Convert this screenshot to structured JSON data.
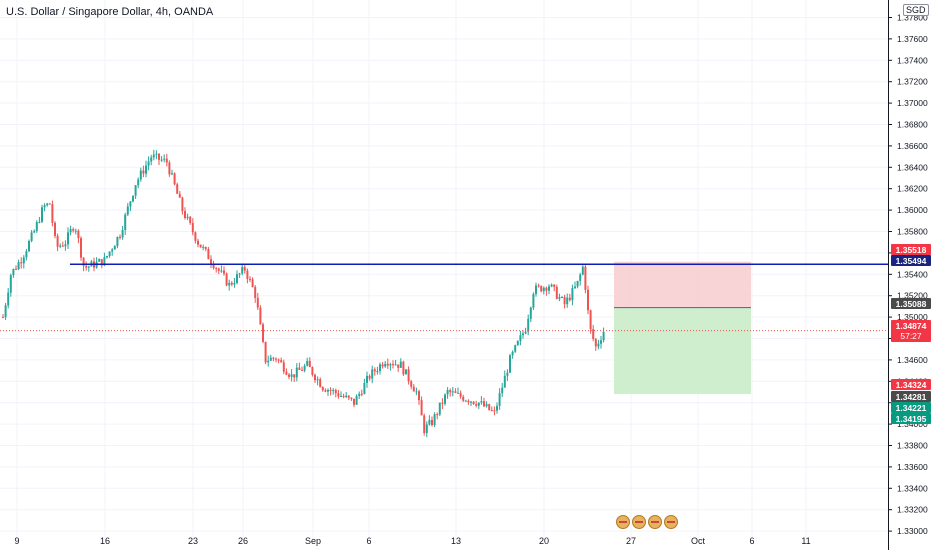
{
  "header": {
    "symbol_title": "U.S. Dollar / Singapore Dollar, 4h, OANDA",
    "currency": "SGD"
  },
  "colors": {
    "up": "#26a69a",
    "down": "#ef5350",
    "hline": "#0d1bb8",
    "stop_zone": "#f8c9cc",
    "target_zone": "#c9ecc9",
    "grid": "#f0f3fa",
    "axis_text": "#131722",
    "current_dash": "#ef5350"
  },
  "price_tags": [
    {
      "text": "1.35518",
      "bg": "#f23645",
      "fg": "#ffffff"
    },
    {
      "text": "1.35494",
      "bg": "#1a237e",
      "fg": "#ffffff"
    },
    {
      "text": "1.35088",
      "bg": "#4a4a4a",
      "fg": "#ffffff"
    },
    {
      "text": "1.34874",
      "sub": "57:27",
      "bg": "#f23645",
      "fg": "#ffffff"
    },
    {
      "text": "1.34324",
      "bg": "#f23645",
      "fg": "#ffffff"
    },
    {
      "text": "1.34281",
      "bg": "#4a4a4a",
      "fg": "#ffffff"
    },
    {
      "text": "1.34221",
      "bg": "#089981",
      "fg": "#ffffff"
    },
    {
      "text": "1.34195",
      "bg": "#089981",
      "fg": "#ffffff"
    }
  ],
  "chart_data": {
    "type": "candlestick",
    "title": "U.S. Dollar / Singapore Dollar, 4h, OANDA",
    "interval": "4h",
    "y_axis_ticks": [
      "1.37800",
      "1.37600",
      "1.37400",
      "1.37200",
      "1.37000",
      "1.36800",
      "1.36600",
      "1.36400",
      "1.36200",
      "1.36000",
      "1.35800",
      "1.35600",
      "1.35400",
      "1.35200",
      "1.35000",
      "1.34800",
      "1.34600",
      "1.34400",
      "1.34200",
      "1.34000",
      "1.33800",
      "1.33600",
      "1.33400",
      "1.33200",
      "1.33000"
    ],
    "ylim": [
      1.33,
      1.379
    ],
    "x_axis_ticks": [
      "9",
      "16",
      "23",
      "26",
      "Sep",
      "6",
      "13",
      "20",
      "27",
      "Oct",
      "6",
      "11"
    ],
    "horizontal_line": 1.35494,
    "current_price": 1.34874,
    "position": {
      "entry": 1.35088,
      "stop": 1.35518,
      "target": 1.34281
    },
    "anchors": [
      {
        "d": 0.0,
        "p": 1.35
      },
      {
        "d": 0.5,
        "p": 1.354
      },
      {
        "d": 1.2,
        "p": 1.3555
      },
      {
        "d": 2.0,
        "p": 1.358
      },
      {
        "d": 2.6,
        "p": 1.3603
      },
      {
        "d": 3.0,
        "p": 1.3606
      },
      {
        "d": 3.4,
        "p": 1.3565
      },
      {
        "d": 4.0,
        "p": 1.357
      },
      {
        "d": 4.6,
        "p": 1.3588
      },
      {
        "d": 5.2,
        "p": 1.3546
      },
      {
        "d": 6.5,
        "p": 1.3553
      },
      {
        "d": 7.5,
        "p": 1.3578
      },
      {
        "d": 8.5,
        "p": 1.3625
      },
      {
        "d": 9.5,
        "p": 1.365
      },
      {
        "d": 10.5,
        "p": 1.3645
      },
      {
        "d": 11.5,
        "p": 1.36
      },
      {
        "d": 12.5,
        "p": 1.357
      },
      {
        "d": 13.5,
        "p": 1.355
      },
      {
        "d": 14.5,
        "p": 1.353
      },
      {
        "d": 15.5,
        "p": 1.3545
      },
      {
        "d": 16.2,
        "p": 1.352
      },
      {
        "d": 16.8,
        "p": 1.346
      },
      {
        "d": 17.5,
        "p": 1.3462
      },
      {
        "d": 18.5,
        "p": 1.3445
      },
      {
        "d": 19.5,
        "p": 1.3455
      },
      {
        "d": 20.5,
        "p": 1.3435
      },
      {
        "d": 21.5,
        "p": 1.3428
      },
      {
        "d": 22.5,
        "p": 1.342
      },
      {
        "d": 23.5,
        "p": 1.3445
      },
      {
        "d": 24.5,
        "p": 1.346
      },
      {
        "d": 25.5,
        "p": 1.3455
      },
      {
        "d": 26.5,
        "p": 1.343
      },
      {
        "d": 27.0,
        "p": 1.3395
      },
      {
        "d": 27.5,
        "p": 1.3402
      },
      {
        "d": 28.5,
        "p": 1.343
      },
      {
        "d": 29.5,
        "p": 1.3425
      },
      {
        "d": 30.5,
        "p": 1.342
      },
      {
        "d": 31.5,
        "p": 1.341
      },
      {
        "d": 32.5,
        "p": 1.346
      },
      {
        "d": 33.5,
        "p": 1.349
      },
      {
        "d": 34.0,
        "p": 1.3525
      },
      {
        "d": 35.0,
        "p": 1.353
      },
      {
        "d": 36.0,
        "p": 1.3512
      },
      {
        "d": 36.8,
        "p": 1.353
      },
      {
        "d": 37.2,
        "p": 1.3548
      },
      {
        "d": 37.6,
        "p": 1.349
      },
      {
        "d": 38.0,
        "p": 1.3472
      },
      {
        "d": 38.5,
        "p": 1.3487
      }
    ]
  }
}
